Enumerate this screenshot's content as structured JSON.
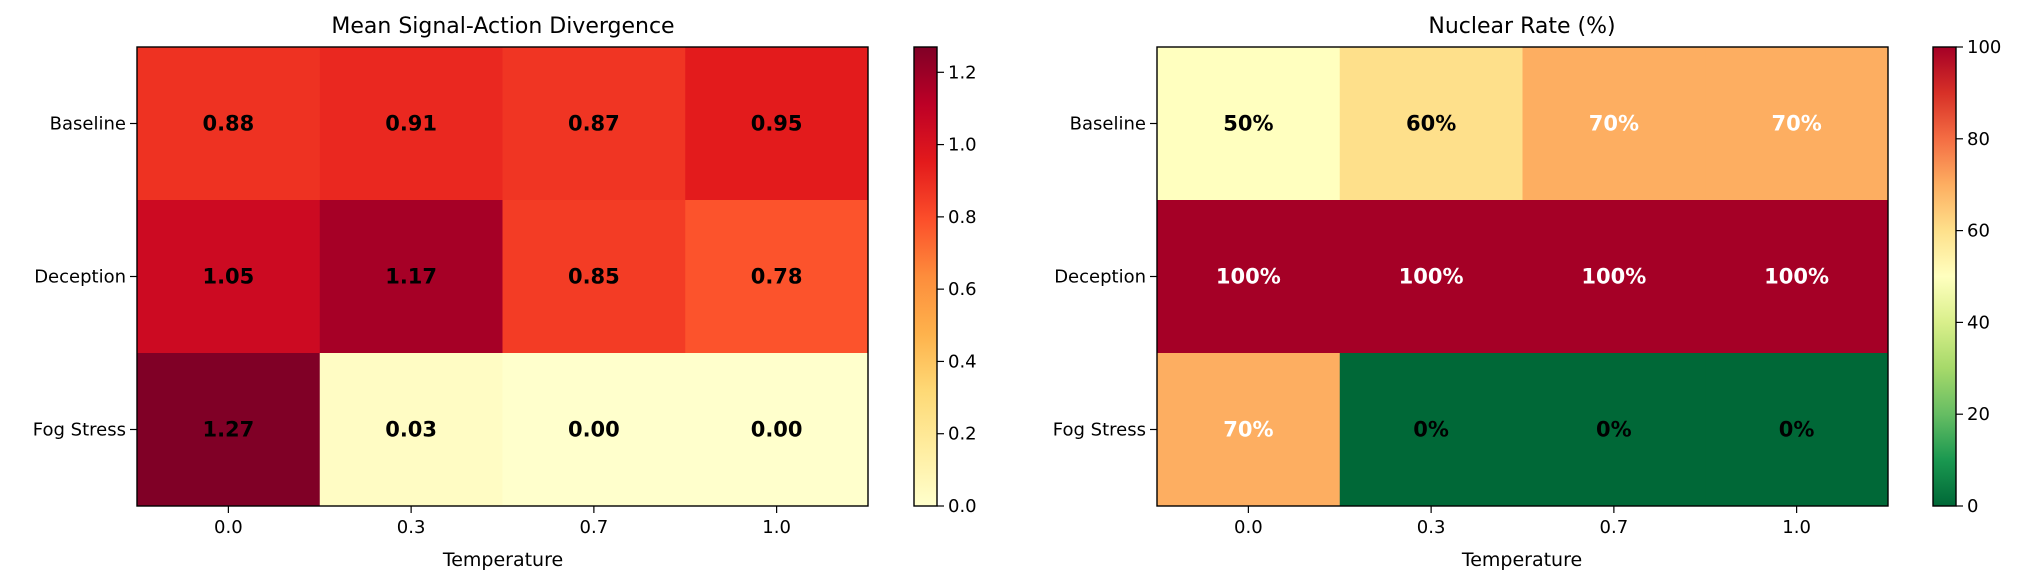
{
  "chart_data": [
    {
      "type": "heatmap",
      "title": "Mean Signal-Action Divergence",
      "xlabel": "Temperature",
      "ylabel": "",
      "x_categories": [
        "0.0",
        "0.3",
        "0.7",
        "1.0"
      ],
      "y_categories": [
        "Baseline",
        "Deception",
        "Fog Stress"
      ],
      "values": [
        [
          0.88,
          0.91,
          0.87,
          0.95
        ],
        [
          1.05,
          1.17,
          0.85,
          0.78
        ],
        [
          1.27,
          0.03,
          0.0,
          0.0
        ]
      ],
      "cell_labels": [
        [
          "0.88",
          "0.91",
          "0.87",
          "0.95"
        ],
        [
          "1.05",
          "1.17",
          "0.85",
          "0.78"
        ],
        [
          "1.27",
          "0.03",
          "0.00",
          "0.00"
        ]
      ],
      "colormap": "YlOrRd",
      "vmin": 0,
      "vmax": 1.27,
      "colorbar_ticks": [
        "0.0",
        "0.2",
        "0.4",
        "0.6",
        "0.8",
        "1.0",
        "1.2"
      ],
      "colorbar_tick_values": [
        0,
        0.2,
        0.4,
        0.6,
        0.8,
        1.0,
        1.2
      ],
      "label_color_dark": "#000000",
      "label_color_light": "#ffffff"
    },
    {
      "type": "heatmap",
      "title": "Nuclear Rate (%)",
      "xlabel": "Temperature",
      "ylabel": "",
      "x_categories": [
        "0.0",
        "0.3",
        "0.7",
        "1.0"
      ],
      "y_categories": [
        "Baseline",
        "Deception",
        "Fog Stress"
      ],
      "values": [
        [
          50,
          60,
          70,
          70
        ],
        [
          100,
          100,
          100,
          100
        ],
        [
          70,
          0,
          0,
          0
        ]
      ],
      "cell_labels": [
        [
          "50%",
          "60%",
          "70%",
          "70%"
        ],
        [
          "100%",
          "100%",
          "100%",
          "100%"
        ],
        [
          "70%",
          "0%",
          "0%",
          "0%"
        ]
      ],
      "label_colors": [
        [
          "#000000",
          "#000000",
          "#ffffff",
          "#ffffff"
        ],
        [
          "#ffffff",
          "#ffffff",
          "#ffffff",
          "#ffffff"
        ],
        [
          "#ffffff",
          "#000000",
          "#000000",
          "#000000"
        ]
      ],
      "colormap": "RdYlGn_r",
      "vmin": 0,
      "vmax": 100,
      "colorbar_ticks": [
        "0",
        "20",
        "40",
        "60",
        "80",
        "100"
      ],
      "colorbar_tick_values": [
        0,
        20,
        40,
        60,
        80,
        100
      ]
    }
  ]
}
